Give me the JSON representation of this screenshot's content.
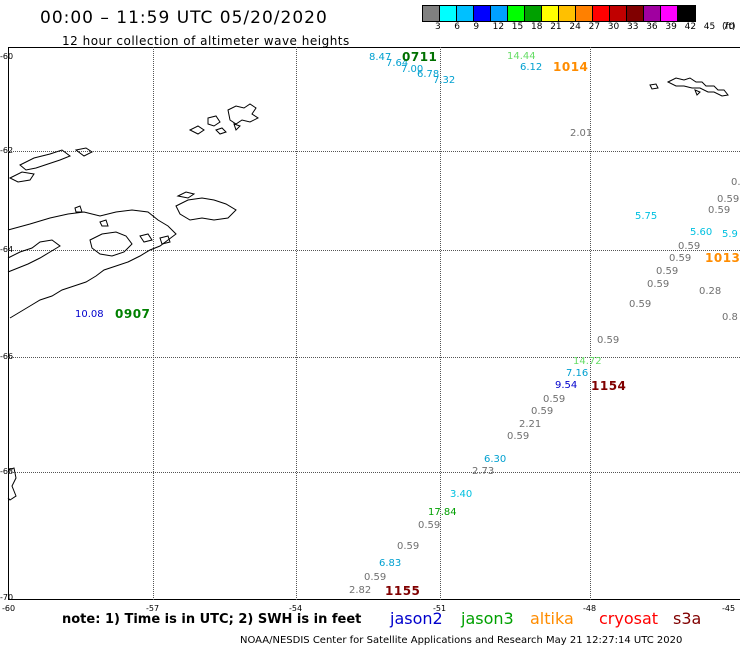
{
  "header": {
    "title": "00:00 – 11:59 UTC 05/20/2020",
    "subtitle": "12 hour collection of altimeter wave heights"
  },
  "colorbar": {
    "colors": [
      "#808080",
      "#00ffff",
      "#00c0ff",
      "#0000ff",
      "#00a0ff",
      "#00ff00",
      "#00a000",
      "#ffff00",
      "#ffc000",
      "#ff8000",
      "#ff0000",
      "#c00000",
      "#800000",
      "#a000a0",
      "#ff00ff",
      "#000000"
    ],
    "labels": [
      "3",
      "6",
      "9",
      "12",
      "15",
      "18",
      "21",
      "24",
      "27",
      "30",
      "33",
      "36",
      "39",
      "42",
      "45",
      "70",
      "(ft)"
    ]
  },
  "axes": {
    "lat_labels": [
      "-60",
      "-62",
      "-64",
      "-66",
      "-68",
      "-70"
    ],
    "lon_labels": [
      "-60",
      "-57",
      "-54",
      "-51",
      "-48",
      "-45"
    ]
  },
  "observations": [
    {
      "text": "8.47",
      "color": "#00a0d0"
    },
    {
      "text": "7.64",
      "color": "#00a0d0"
    },
    {
      "text": "7.00",
      "color": "#00a0d0"
    },
    {
      "text": "6.78",
      "color": "#00a0d0"
    },
    {
      "text": "7.32",
      "color": "#00a0d0"
    },
    {
      "text": "14.44",
      "color": "#66dd66"
    },
    {
      "text": "6.12",
      "color": "#00a0d0"
    },
    {
      "text": "2.01",
      "color": "#707070"
    },
    {
      "text": "0.",
      "color": "#707070"
    },
    {
      "text": "0.59",
      "color": "#707070"
    },
    {
      "text": "0.59",
      "color": "#707070"
    },
    {
      "text": "5.75",
      "color": "#00c0e0"
    },
    {
      "text": "5.60",
      "color": "#00c0e0"
    },
    {
      "text": "5.9",
      "color": "#00c0e0"
    },
    {
      "text": "0.59",
      "color": "#707070"
    },
    {
      "text": "0.59",
      "color": "#707070"
    },
    {
      "text": "0.59",
      "color": "#707070"
    },
    {
      "text": "0.59",
      "color": "#707070"
    },
    {
      "text": "0.28",
      "color": "#707070"
    },
    {
      "text": "0.59",
      "color": "#707070"
    },
    {
      "text": "0.8",
      "color": "#707070"
    },
    {
      "text": "10.08",
      "color": "#0000cc"
    },
    {
      "text": "0.59",
      "color": "#707070"
    },
    {
      "text": "14.72",
      "color": "#66dd66"
    },
    {
      "text": "7.16",
      "color": "#00a0d0"
    },
    {
      "text": "9.54",
      "color": "#0000cc"
    },
    {
      "text": "0.59",
      "color": "#707070"
    },
    {
      "text": "0.59",
      "color": "#707070"
    },
    {
      "text": "2.21",
      "color": "#707070"
    },
    {
      "text": "0.59",
      "color": "#707070"
    },
    {
      "text": "6.30",
      "color": "#00a0d0"
    },
    {
      "text": "2.73",
      "color": "#707070"
    },
    {
      "text": "3.40",
      "color": "#00c0e0"
    },
    {
      "text": "17.84",
      "color": "#00a000"
    },
    {
      "text": "0.59",
      "color": "#707070"
    },
    {
      "text": "0.59",
      "color": "#707070"
    },
    {
      "text": "6.83",
      "color": "#00a0d0"
    },
    {
      "text": "0.59",
      "color": "#707070"
    },
    {
      "text": "2.82",
      "color": "#707070"
    }
  ],
  "time_labels": [
    {
      "text": "0711",
      "color": "#007000"
    },
    {
      "text": "1014",
      "color": "#ff8c00"
    },
    {
      "text": "1013",
      "color": "#ff8c00"
    },
    {
      "text": "0907",
      "color": "#008000"
    },
    {
      "text": "1154",
      "color": "#800000"
    },
    {
      "text": "1155",
      "color": "#800000"
    }
  ],
  "footer": {
    "note": "note: 1) Time is in UTC; 2) SWH is in feet",
    "legend": [
      {
        "text": "jason2",
        "color": "#0000cc"
      },
      {
        "text": "jason3",
        "color": "#00a000"
      },
      {
        "text": "altika",
        "color": "#ff8c00"
      },
      {
        "text": "cryosat",
        "color": "#ff0000"
      },
      {
        "text": "s3a",
        "color": "#800000"
      }
    ],
    "credit": "NOAA/NESDIS Center for Satellite Applications and Research    May 21 12:27:14 UTC 2020"
  }
}
